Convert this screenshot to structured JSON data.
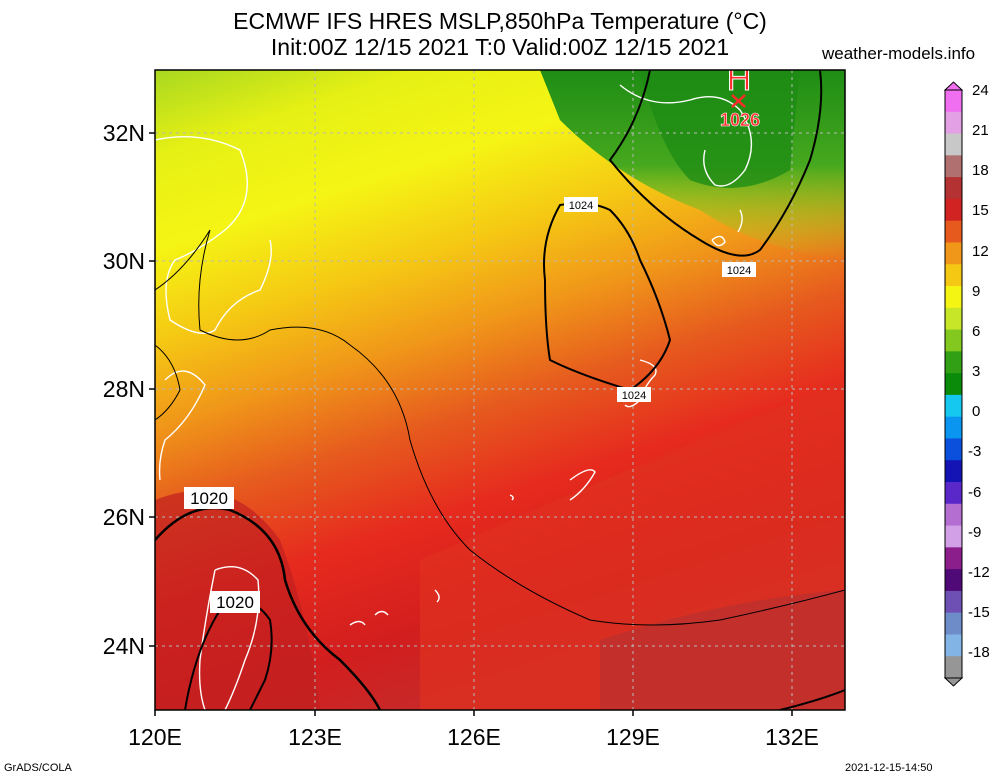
{
  "header": {
    "title_line1": "ECMWF IFS HRES MSLP,850hPa Temperature (°C)",
    "title_line2": "Init:00Z 12/15 2021 T:0 Valid:00Z 12/15 2021",
    "site": "weather-models.info"
  },
  "map": {
    "lat_labels": [
      "32N",
      "30N",
      "28N",
      "26N",
      "24N"
    ],
    "lon_labels": [
      "120E",
      "123E",
      "126E",
      "129E",
      "132E"
    ],
    "isobar_labels": [
      "1024",
      "1024",
      "1024",
      "1020",
      "1020"
    ],
    "high": {
      "symbol": "H",
      "value": "1026"
    }
  },
  "colorbar": {
    "labels": [
      "24",
      "21",
      "18",
      "15",
      "12",
      "9",
      "6",
      "3",
      "0",
      "-3",
      "-6",
      "-9",
      "-12",
      "-15",
      "-18"
    ],
    "colors": [
      "#f06ef0",
      "#e4a0e4",
      "#c8c8c8",
      "#b07070",
      "#b43232",
      "#d22323",
      "#e65a1e",
      "#f09619",
      "#f5c814",
      "#f5f514",
      "#c8e628",
      "#82c81e",
      "#32a014",
      "#0a8c0a",
      "#14c8f0",
      "#0a96f0",
      "#0a50dc",
      "#1414b4",
      "#5a28c8",
      "#b46ed2",
      "#d2a0e6",
      "#8c1e8c",
      "#500a78",
      "#6e50b4",
      "#6e8cc8",
      "#82b4e6",
      "#969696"
    ]
  },
  "footer": {
    "left": "GrADS/COLA",
    "right": "2021-12-15-14:50"
  }
}
